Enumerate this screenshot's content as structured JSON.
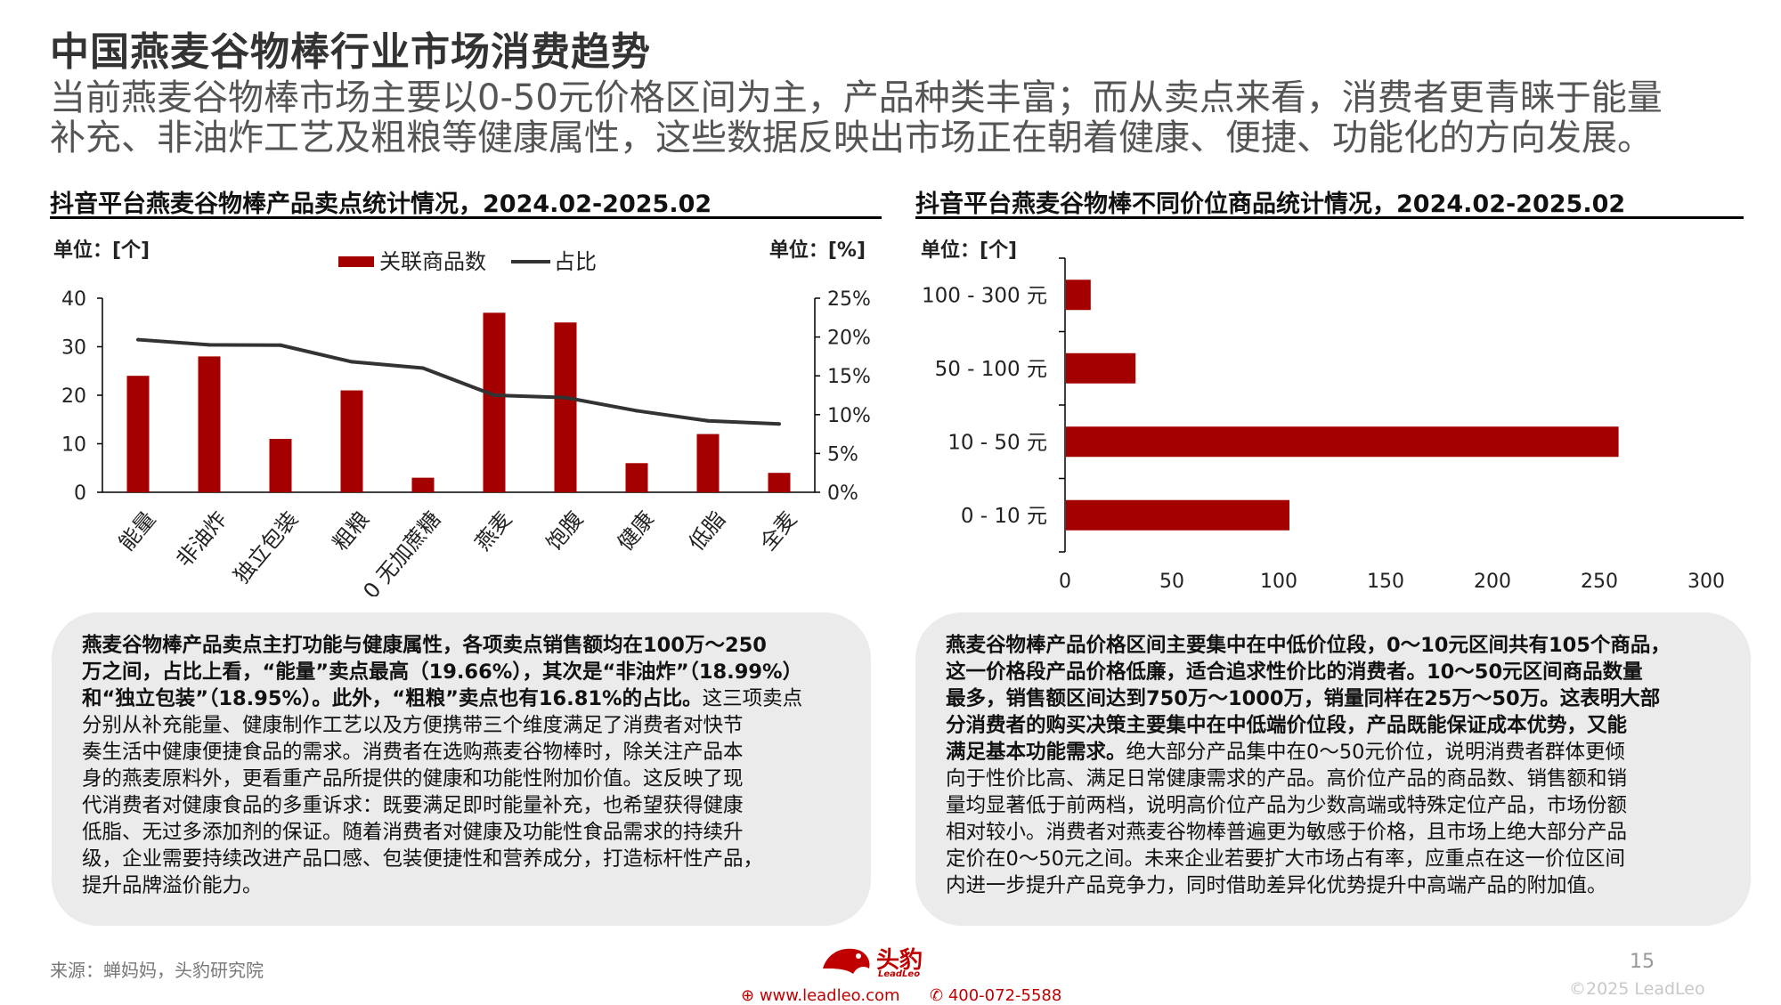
{
  "page": {
    "title": "中国燕麦谷物棒行业市场消费趋势",
    "subtitle_lines": [
      "当前燕麦谷物棒市场主要以0-50元价格区间为主，产品种类丰富；而从卖点来看，消费者更青睐于能量",
      "补充、非油炸工艺及粗粮等健康属性，这些数据反映出市场正在朝着健康、便捷、功能化的方向发展。"
    ]
  },
  "colors": {
    "bar": "#a50000",
    "line": "#333333",
    "box_bg": "#ebebeb",
    "brand": "#c00000"
  },
  "chart_data": [
    {
      "type": "bar",
      "title": "抖音平台燕麦谷物棒产品卖点统计情况，2024.02-2025.02",
      "left_unit": "单位：[个]",
      "right_unit": "单位：[%]",
      "categories": [
        "能量",
        "非油炸",
        "独立包装",
        "粗粮",
        "0 无加蔗糖",
        "燕麦",
        "饱腹",
        "健康",
        "低脂",
        "全麦"
      ],
      "series": [
        {
          "name": "关联商品数",
          "type": "bar",
          "axis": "left",
          "values": [
            24,
            28,
            11,
            21,
            3,
            37,
            35,
            6,
            12,
            4
          ]
        },
        {
          "name": "占比",
          "type": "line",
          "axis": "right",
          "values": [
            19.66,
            18.99,
            18.95,
            16.81,
            16.0,
            12.5,
            12.2,
            10.5,
            9.2,
            8.8
          ]
        }
      ],
      "ylim": [
        0,
        40
      ],
      "yticks": [
        "0",
        "10",
        "20",
        "30",
        "40"
      ],
      "y2lim": [
        0,
        25
      ],
      "y2ticks": [
        "0%",
        "5%",
        "10%",
        "15%",
        "20%",
        "25%"
      ],
      "legend": "top-center",
      "grid": false
    },
    {
      "type": "bar",
      "orientation": "horizontal",
      "title": "抖音平台燕麦谷物棒不同价位商品统计情况，2024.02-2025.02",
      "unit": "单位：[个]",
      "categories": [
        "100 - 300 元",
        "50 - 100 元",
        "10 - 50 元",
        "0 - 10 元"
      ],
      "values": [
        12,
        33,
        259,
        105
      ],
      "xlim": [
        0,
        300
      ],
      "xticks": [
        "0",
        "50",
        "100",
        "150",
        "200",
        "250",
        "300"
      ],
      "grid": false
    }
  ],
  "left_box": {
    "lines": [
      {
        "bold": "燕麦谷物棒产品卖点主打功能与健康属性，各项卖点销售额均在100万～250",
        "normal": ""
      },
      {
        "bold": "万之间，占比上看，“能量”卖点最高（19.66%），其次是“非油炸”（18.99%）",
        "normal": ""
      },
      {
        "bold": "和“独立包装”（18.95%）。此外，“粗粮”卖点也有16.81%的占比。",
        "normal": "这三项卖点"
      },
      {
        "bold": "",
        "normal": "分别从补充能量、健康制作工艺以及方便携带三个维度满足了消费者对快节"
      },
      {
        "bold": "",
        "normal": "奏生活中健康便捷食品的需求。消费者在选购燕麦谷物棒时，除关注产品本"
      },
      {
        "bold": "",
        "normal": "身的燕麦原料外，更看重产品所提供的健康和功能性附加价值。这反映了现"
      },
      {
        "bold": "",
        "normal": "代消费者对健康食品的多重诉求：既要满足即时能量补充，也希望获得健康"
      },
      {
        "bold": "",
        "normal": "低脂、无过多添加剂的保证。随着消费者对健康及功能性食品需求的持续升"
      },
      {
        "bold": "",
        "normal": "级，企业需要持续改进产品口感、包装便捷性和营养成分，打造标杆性产品，"
      },
      {
        "bold": "",
        "normal": "提升品牌溢价能力。"
      }
    ]
  },
  "right_box": {
    "lines": [
      {
        "bold": "燕麦谷物棒产品价格区间主要集中在中低价位段，0～10元区间共有105个商品，",
        "normal": ""
      },
      {
        "bold": "这一价格段产品价格低廉，适合追求性价比的消费者。10～50元区间商品数量",
        "normal": ""
      },
      {
        "bold": "最多，销售额区间达到750万～1000万，销量同样在25万～50万。这表明大部",
        "normal": ""
      },
      {
        "bold": "分消费者的购买决策主要集中在中低端价位段，产品既能保证成本优势，又能",
        "normal": ""
      },
      {
        "bold": "满足基本功能需求。",
        "normal": "绝大部分产品集中在0～50元价位，说明消费者群体更倾"
      },
      {
        "bold": "",
        "normal": "向于性价比高、满足日常健康需求的产品。高价位产品的商品数、销售额和销"
      },
      {
        "bold": "",
        "normal": "量均显著低于前两档，说明高价位产品为少数高端或特殊定位产品，市场份额"
      },
      {
        "bold": "",
        "normal": "相对较小。消费者对燕麦谷物棒普遍更为敏感于价格，且市场上绝大部分产品"
      },
      {
        "bold": "",
        "normal": "定价在0～50元之间。未来企业若要扩大市场占有率，应重点在这一价位区间"
      },
      {
        "bold": "",
        "normal": "内进一步提升产品竞争力，同时借助差异化优势提升中高端产品的附加值。"
      }
    ]
  },
  "footer": {
    "source": "来源：蝉妈妈，头豹研究院",
    "logo_text": "头豹",
    "logo_sub": "LeadLeo",
    "website": "www.leadleo.com",
    "phone": "400-072-5588",
    "page_number": "15",
    "copyright": "©2025 LeadLeo"
  }
}
